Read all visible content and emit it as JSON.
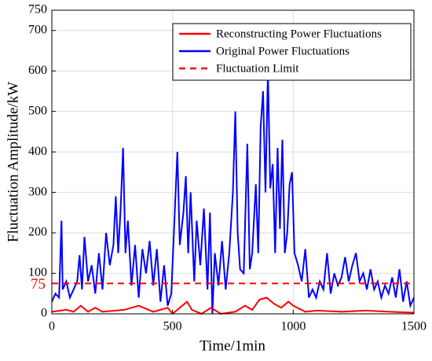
{
  "chart_data": {
    "type": "line",
    "xlabel": "Time/1min",
    "ylabel": "Fluctuation Amplitude/kW",
    "xlim": [
      0,
      1500
    ],
    "ylim": [
      0,
      750
    ],
    "xticks": [
      0,
      500,
      1000,
      1500
    ],
    "yticks": [
      0,
      100,
      200,
      300,
      400,
      500,
      600,
      700,
      750
    ],
    "grid": true,
    "legend": "upper right",
    "annotations": [
      {
        "text": "75",
        "y": 75,
        "color": "#ff0000"
      }
    ],
    "series": [
      {
        "name": "Reconstructing Power Fluctuations",
        "color": "#ff0000",
        "linestyle": "solid",
        "x": [
          0,
          60,
          90,
          120,
          150,
          180,
          210,
          300,
          360,
          420,
          480,
          500,
          540,
          560,
          580,
          620,
          660,
          700,
          760,
          800,
          830,
          860,
          890,
          920,
          950,
          980,
          1000,
          1050,
          1100,
          1200,
          1300,
          1400,
          1500
        ],
        "values": [
          5,
          10,
          5,
          20,
          5,
          15,
          5,
          10,
          20,
          5,
          15,
          0,
          20,
          30,
          10,
          0,
          15,
          0,
          5,
          20,
          10,
          35,
          40,
          25,
          15,
          30,
          20,
          5,
          8,
          5,
          8,
          5,
          3
        ]
      },
      {
        "name": "Original Power Fluctuations",
        "color": "#0000ff",
        "linestyle": "solid",
        "x": [
          0,
          15,
          30,
          40,
          45,
          60,
          75,
          90,
          105,
          115,
          125,
          135,
          150,
          165,
          180,
          195,
          210,
          225,
          240,
          255,
          265,
          275,
          285,
          295,
          305,
          315,
          330,
          345,
          360,
          375,
          390,
          405,
          420,
          435,
          450,
          465,
          480,
          495,
          510,
          520,
          530,
          545,
          555,
          565,
          575,
          590,
          600,
          615,
          630,
          645,
          655,
          665,
          675,
          690,
          705,
          720,
          735,
          750,
          760,
          770,
          780,
          795,
          810,
          820,
          830,
          845,
          855,
          865,
          875,
          885,
          895,
          905,
          915,
          925,
          935,
          945,
          955,
          965,
          975,
          985,
          995,
          1005,
          1020,
          1035,
          1050,
          1065,
          1080,
          1095,
          1110,
          1125,
          1140,
          1155,
          1170,
          1185,
          1200,
          1215,
          1230,
          1245,
          1260,
          1275,
          1290,
          1305,
          1320,
          1335,
          1350,
          1365,
          1380,
          1395,
          1410,
          1425,
          1440,
          1455,
          1470,
          1485,
          1500
        ],
        "values": [
          30,
          50,
          40,
          230,
          60,
          80,
          40,
          60,
          80,
          145,
          60,
          190,
          80,
          120,
          50,
          150,
          60,
          200,
          120,
          170,
          290,
          150,
          260,
          410,
          150,
          230,
          70,
          170,
          40,
          160,
          100,
          180,
          70,
          160,
          30,
          120,
          20,
          50,
          260,
          400,
          170,
          250,
          340,
          150,
          300,
          80,
          230,
          120,
          260,
          60,
          250,
          0,
          150,
          70,
          180,
          60,
          150,
          300,
          500,
          200,
          110,
          100,
          420,
          110,
          150,
          320,
          150,
          460,
          550,
          300,
          600,
          310,
          370,
          150,
          410,
          210,
          430,
          150,
          200,
          320,
          350,
          150,
          120,
          80,
          160,
          40,
          60,
          40,
          80,
          60,
          150,
          50,
          100,
          70,
          90,
          140,
          80,
          120,
          150,
          80,
          100,
          60,
          110,
          60,
          80,
          40,
          70,
          50,
          90,
          40,
          110,
          30,
          80,
          20,
          40
        ]
      },
      {
        "name": "Fluctuation Limit",
        "color": "#ff0000",
        "linestyle": "dashed",
        "x": [
          0,
          1500
        ],
        "values": [
          75,
          75
        ]
      }
    ]
  }
}
